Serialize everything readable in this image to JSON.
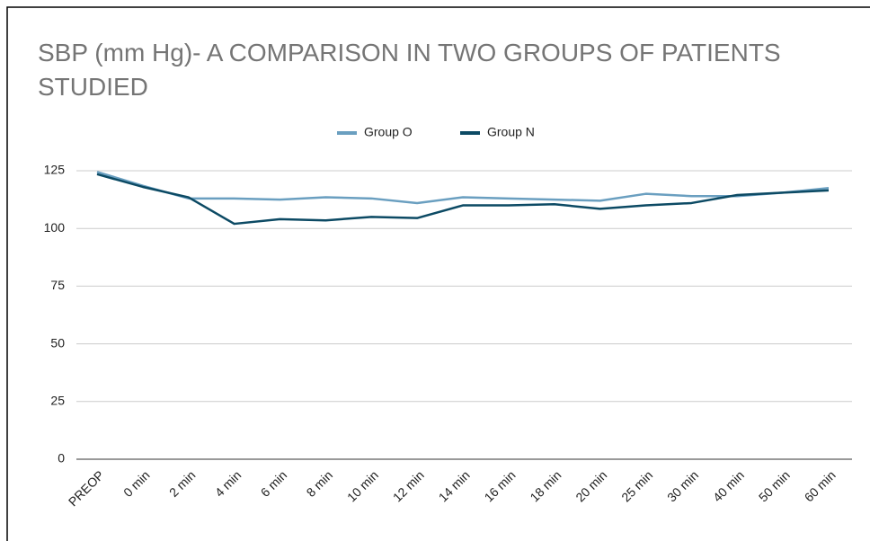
{
  "chart_data": {
    "type": "line",
    "title": "SBP (mm Hg)- A COMPARISON IN TWO GROUPS OF PATIENTS STUDIED",
    "categories": [
      "PREOP",
      "0 min",
      "2 min",
      "4 min",
      "6 min",
      "8 min",
      "10 min",
      "12 min",
      "14 min",
      "16 min",
      "18 min",
      "20 min",
      "25 min",
      "30 min",
      "40 min",
      "50 min",
      "60 min"
    ],
    "series": [
      {
        "name": "Group O",
        "color": "#6a9fc0",
        "values": [
          124.5,
          118.5,
          113,
          113,
          112.5,
          113.5,
          113,
          111,
          113.5,
          113,
          112.5,
          112,
          115,
          114,
          114,
          115.5,
          117.5
        ]
      },
      {
        "name": "Group N",
        "color": "#0c4a64",
        "values": [
          123.5,
          118,
          113.5,
          102,
          104,
          103.5,
          105,
          104.5,
          110,
          110,
          110.5,
          108.5,
          110,
          111,
          114.5,
          115.5,
          116.5
        ]
      }
    ],
    "ylim": [
      0,
      125
    ],
    "yticks": [
      0,
      25,
      50,
      75,
      100,
      125
    ],
    "grid": true,
    "legend": "top"
  }
}
